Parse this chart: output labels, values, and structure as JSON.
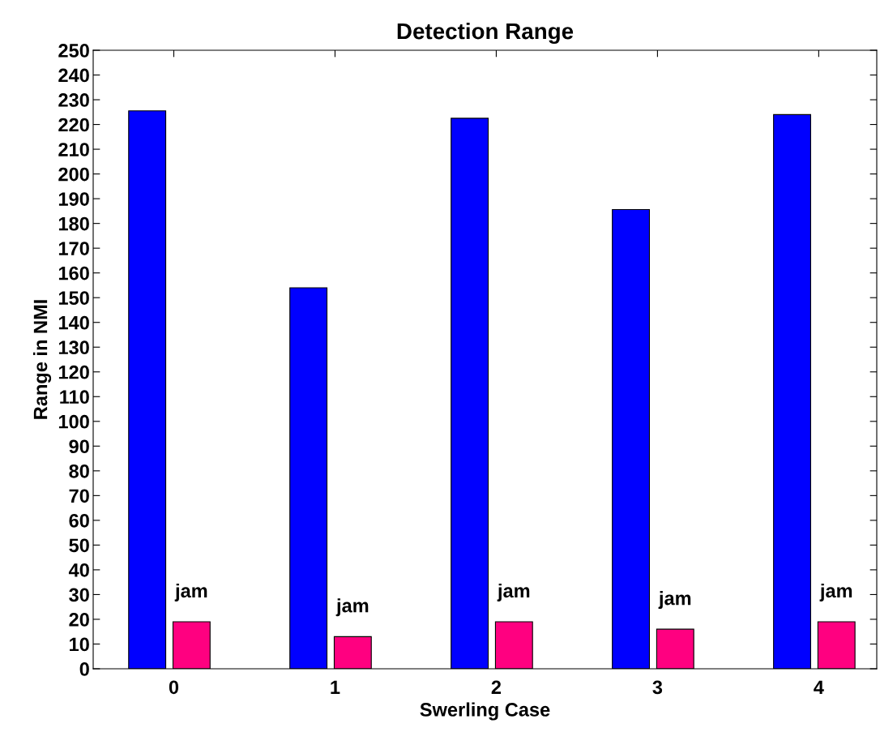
{
  "chart_data": {
    "type": "bar",
    "title": "Detection Range",
    "xlabel": "Swerling Case",
    "ylabel": "Range in NMI",
    "categories": [
      "0",
      "1",
      "2",
      "3",
      "4"
    ],
    "series": [
      {
        "color": "#0000ff",
        "values": [
          225.5,
          154,
          222.5,
          185.6,
          224
        ]
      },
      {
        "color": "#ff0080",
        "values": [
          19,
          13,
          19,
          16,
          19
        ]
      }
    ],
    "annotations": [
      "jam",
      "jam",
      "jam",
      "jam",
      "jam"
    ],
    "ylim": [
      0,
      250
    ],
    "yticks": [
      0,
      10,
      20,
      30,
      40,
      50,
      60,
      70,
      80,
      90,
      100,
      110,
      120,
      130,
      140,
      150,
      160,
      170,
      180,
      190,
      200,
      210,
      220,
      230,
      240,
      250
    ],
    "grid": false,
    "legend": false
  }
}
